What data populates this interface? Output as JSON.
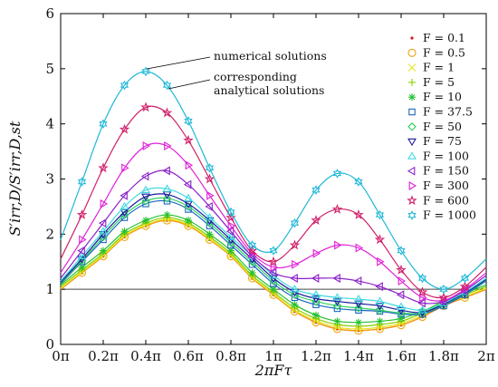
{
  "chart_data": {
    "type": "line",
    "xlabel": "2πFτ",
    "ylabel": "S′irr,D/S′irr,D,st",
    "xlim": [
      0,
      2
    ],
    "ylim": [
      0,
      6
    ],
    "x_unit": "π",
    "xticks": [
      0,
      0.2,
      0.4,
      0.6,
      0.8,
      1,
      1.2,
      1.4,
      1.6,
      1.8,
      2
    ],
    "xtick_labels": [
      "0π",
      "0.2π",
      "0.4π",
      "0.6π",
      "0.8π",
      "1π",
      "1.2π",
      "1.4π",
      "1.6π",
      "1.8π",
      "2π"
    ],
    "yticks": [
      0,
      1,
      2,
      3,
      4,
      5,
      6
    ],
    "ytick_labels": [
      "0",
      "1",
      "2",
      "3",
      "4",
      "5",
      "6"
    ],
    "reference_line": {
      "y": 1
    },
    "legend_position": "right",
    "annotations": [
      "numerical solutions",
      "corresponding",
      "analytical solutions"
    ],
    "x": [
      0,
      0.1,
      0.2,
      0.3,
      0.4,
      0.5,
      0.6,
      0.7,
      0.8,
      0.9,
      1.0,
      1.1,
      1.2,
      1.3,
      1.4,
      1.5,
      1.6,
      1.7,
      1.8,
      1.9,
      2.0
    ],
    "series": [
      {
        "name": "F = 0.1",
        "color": "#d7191c",
        "marker": "dot",
        "values": [
          1.0,
          1.3,
          1.6,
          1.95,
          2.15,
          2.25,
          2.15,
          1.9,
          1.6,
          1.2,
          0.9,
          0.6,
          0.4,
          0.28,
          0.25,
          0.28,
          0.35,
          0.5,
          0.7,
          0.85,
          1.0
        ]
      },
      {
        "name": "F = 0.5",
        "color": "#f0a010",
        "marker": "circle",
        "values": [
          1.0,
          1.3,
          1.6,
          1.95,
          2.15,
          2.25,
          2.15,
          1.9,
          1.6,
          1.2,
          0.9,
          0.6,
          0.4,
          0.28,
          0.25,
          0.28,
          0.35,
          0.5,
          0.7,
          0.85,
          1.0
        ]
      },
      {
        "name": "F = 1",
        "color": "#e6e620",
        "marker": "x",
        "values": [
          1.02,
          1.32,
          1.62,
          1.97,
          2.17,
          2.27,
          2.17,
          1.92,
          1.62,
          1.22,
          0.92,
          0.62,
          0.43,
          0.31,
          0.28,
          0.31,
          0.38,
          0.53,
          0.72,
          0.87,
          1.02
        ]
      },
      {
        "name": "F = 5",
        "color": "#88d000",
        "marker": "plus",
        "values": [
          1.05,
          1.35,
          1.65,
          2.0,
          2.2,
          2.3,
          2.2,
          1.95,
          1.65,
          1.25,
          0.95,
          0.66,
          0.47,
          0.36,
          0.33,
          0.36,
          0.42,
          0.57,
          0.75,
          0.9,
          1.05
        ]
      },
      {
        "name": "F = 10",
        "color": "#22c030",
        "marker": "asterisk",
        "values": [
          1.08,
          1.4,
          1.7,
          2.05,
          2.25,
          2.35,
          2.25,
          2.0,
          1.7,
          1.3,
          1.0,
          0.72,
          0.53,
          0.42,
          0.4,
          0.42,
          0.47,
          0.6,
          0.78,
          0.93,
          1.08
        ]
      },
      {
        "name": "F = 37.5",
        "color": "#1a66c0",
        "marker": "square",
        "values": [
          1.1,
          1.5,
          1.9,
          2.3,
          2.55,
          2.6,
          2.45,
          2.15,
          1.8,
          1.45,
          1.1,
          0.85,
          0.72,
          0.65,
          0.62,
          0.6,
          0.55,
          0.55,
          0.7,
          0.9,
          1.15
        ]
      },
      {
        "name": "F = 50",
        "color": "#30d060",
        "marker": "diamond",
        "values": [
          1.12,
          1.52,
          1.95,
          2.35,
          2.6,
          2.65,
          2.5,
          2.2,
          1.85,
          1.5,
          1.15,
          0.9,
          0.78,
          0.7,
          0.66,
          0.62,
          0.57,
          0.57,
          0.72,
          0.92,
          1.17
        ]
      },
      {
        "name": "F = 75",
        "color": "#1a1aa0",
        "marker": "tri-down",
        "values": [
          1.13,
          1.55,
          2.0,
          2.4,
          2.68,
          2.72,
          2.55,
          2.25,
          1.9,
          1.55,
          1.2,
          0.95,
          0.83,
          0.78,
          0.74,
          0.7,
          0.62,
          0.58,
          0.73,
          0.93,
          1.18
        ]
      },
      {
        "name": "F = 100",
        "color": "#40d8e0",
        "marker": "tri-up",
        "values": [
          1.15,
          1.6,
          2.05,
          2.5,
          2.8,
          2.82,
          2.65,
          2.3,
          1.95,
          1.6,
          1.25,
          1.0,
          0.9,
          0.85,
          0.82,
          0.78,
          0.68,
          0.62,
          0.75,
          0.95,
          1.2
        ]
      },
      {
        "name": "F = 150",
        "color": "#8a20c8",
        "marker": "tri-left",
        "values": [
          1.2,
          1.7,
          2.2,
          2.7,
          3.05,
          3.15,
          2.9,
          2.5,
          2.05,
          1.6,
          1.3,
          1.2,
          1.2,
          1.2,
          1.15,
          1.05,
          0.9,
          0.75,
          0.78,
          0.98,
          1.25
        ]
      },
      {
        "name": "F = 300",
        "color": "#e020d8",
        "marker": "tri-right",
        "values": [
          1.3,
          1.9,
          2.55,
          3.2,
          3.6,
          3.6,
          3.25,
          2.7,
          2.15,
          1.65,
          1.4,
          1.45,
          1.65,
          1.8,
          1.75,
          1.5,
          1.15,
          0.85,
          0.8,
          1.0,
          1.3
        ]
      },
      {
        "name": "F = 600",
        "color": "#d0206a",
        "marker": "star",
        "values": [
          1.55,
          2.35,
          3.2,
          3.9,
          4.3,
          4.2,
          3.7,
          3.0,
          2.3,
          1.7,
          1.5,
          1.8,
          2.25,
          2.45,
          2.35,
          1.9,
          1.35,
          0.95,
          0.85,
          1.05,
          1.4
        ]
      },
      {
        "name": "F = 1000",
        "color": "#20b8d8",
        "marker": "hexstar",
        "values": [
          1.9,
          2.95,
          4.0,
          4.7,
          4.95,
          4.7,
          4.05,
          3.2,
          2.4,
          1.8,
          1.7,
          2.2,
          2.8,
          3.1,
          2.95,
          2.35,
          1.7,
          1.2,
          1.0,
          1.2,
          1.55
        ]
      }
    ]
  }
}
